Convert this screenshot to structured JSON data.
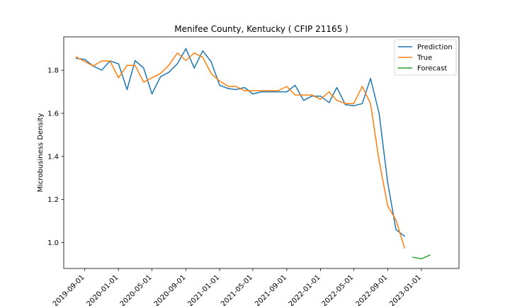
{
  "chart_data": {
    "type": "line",
    "title": "Menifee County, Kentucky ( CFIP 21165 )",
    "xlabel": "",
    "ylabel": "Microbusiness Density",
    "x_type": "date",
    "xlim": [
      "2019-06-17",
      "2023-05-17"
    ],
    "ylim": [
      0.88,
      1.955
    ],
    "x_ticks": [
      "2019-09-01",
      "2020-01-01",
      "2020-05-01",
      "2020-09-01",
      "2021-01-01",
      "2021-05-01",
      "2021-09-01",
      "2022-01-01",
      "2022-05-01",
      "2022-09-01",
      "2023-01-01"
    ],
    "y_ticks": [
      1.0,
      1.2,
      1.4,
      1.6,
      1.8
    ],
    "y_tick_labels": [
      "1.0",
      "1.2",
      "1.4",
      "1.6",
      "1.8"
    ],
    "grid": false,
    "legend_position": "top-right",
    "series": [
      {
        "name": "Prediction",
        "color": "#1f77b4",
        "x": [
          "2019-08-01",
          "2019-09-01",
          "2019-10-01",
          "2019-11-01",
          "2019-12-01",
          "2020-01-01",
          "2020-02-01",
          "2020-03-01",
          "2020-04-01",
          "2020-05-01",
          "2020-06-01",
          "2020-07-01",
          "2020-08-01",
          "2020-09-01",
          "2020-10-01",
          "2020-11-01",
          "2020-12-01",
          "2021-01-01",
          "2021-02-01",
          "2021-03-01",
          "2021-04-01",
          "2021-05-01",
          "2021-06-01",
          "2021-07-01",
          "2021-08-01",
          "2021-09-01",
          "2021-10-01",
          "2021-11-01",
          "2021-12-01",
          "2022-01-01",
          "2022-02-01",
          "2022-03-01",
          "2022-04-01",
          "2022-05-01",
          "2022-06-01",
          "2022-07-01",
          "2022-08-01",
          "2022-09-01",
          "2022-10-01",
          "2022-11-01"
        ],
        "y": [
          1.855,
          1.85,
          1.82,
          1.8,
          1.843,
          1.83,
          1.71,
          1.845,
          1.81,
          1.69,
          1.77,
          1.79,
          1.83,
          1.9,
          1.81,
          1.89,
          1.84,
          1.73,
          1.715,
          1.71,
          1.72,
          1.69,
          1.7,
          1.7,
          1.7,
          1.7,
          1.73,
          1.66,
          1.68,
          1.68,
          1.65,
          1.72,
          1.64,
          1.635,
          1.645,
          1.762,
          1.6,
          1.28,
          1.06,
          1.03
        ]
      },
      {
        "name": "True",
        "color": "#ff7f0e",
        "x": [
          "2019-08-01",
          "2019-09-01",
          "2019-10-01",
          "2019-11-01",
          "2019-12-01",
          "2020-01-01",
          "2020-02-01",
          "2020-03-01",
          "2020-04-01",
          "2020-05-01",
          "2020-06-01",
          "2020-07-01",
          "2020-08-01",
          "2020-09-01",
          "2020-10-01",
          "2020-11-01",
          "2020-12-01",
          "2021-01-01",
          "2021-02-01",
          "2021-03-01",
          "2021-04-01",
          "2021-05-01",
          "2021-06-01",
          "2021-07-01",
          "2021-08-01",
          "2021-09-01",
          "2021-10-01",
          "2021-11-01",
          "2021-12-01",
          "2022-01-01",
          "2022-02-01",
          "2022-03-01",
          "2022-04-01",
          "2022-05-01",
          "2022-06-01",
          "2022-07-01",
          "2022-08-01",
          "2022-09-01",
          "2022-10-01",
          "2022-11-01"
        ],
        "y": [
          1.862,
          1.84,
          1.82,
          1.843,
          1.843,
          1.765,
          1.823,
          1.823,
          1.745,
          1.765,
          1.785,
          1.823,
          1.88,
          1.845,
          1.88,
          1.86,
          1.785,
          1.75,
          1.725,
          1.725,
          1.705,
          1.705,
          1.705,
          1.705,
          1.705,
          1.725,
          1.685,
          1.685,
          1.685,
          1.665,
          1.7,
          1.66,
          1.645,
          1.645,
          1.725,
          1.645,
          1.38,
          1.17,
          1.105,
          0.975
        ]
      },
      {
        "name": "Forecast",
        "color": "#2ca02c",
        "x": [
          "2022-12-01",
          "2023-01-01",
          "2023-02-01"
        ],
        "y": [
          0.932,
          0.925,
          0.942
        ]
      }
    ]
  }
}
